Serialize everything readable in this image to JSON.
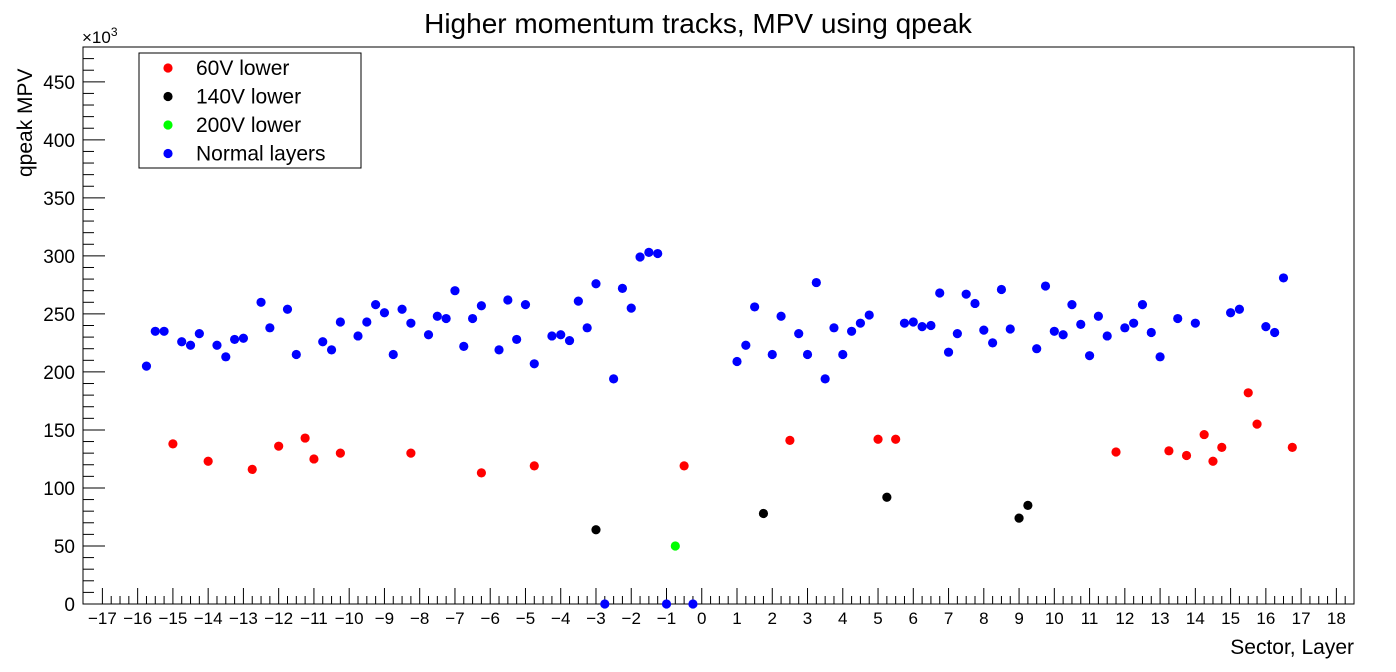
{
  "chart_data": {
    "type": "scatter",
    "title": "Higher momentum tracks, MPV using qpeak",
    "xlabel": "Sector, Layer",
    "ylabel": "qpeak MPV",
    "y_exponent_label": "×10",
    "y_exponent_power": "3",
    "xlim": [
      -17.55,
      18.5
    ],
    "ylim": [
      0,
      480
    ],
    "x_ticks": [
      "−17",
      "−16",
      "−15",
      "−14",
      "−13",
      "−12",
      "−11",
      "−10",
      "−9",
      "−8",
      "−7",
      "−6",
      "−5",
      "−4",
      "−3",
      "−2",
      "−1",
      "0",
      "1",
      "2",
      "3",
      "4",
      "5",
      "6",
      "7",
      "8",
      "9",
      "10",
      "11",
      "12",
      "13",
      "14",
      "15",
      "16",
      "17",
      "18"
    ],
    "y_ticks": [
      "0",
      "50",
      "100",
      "150",
      "200",
      "250",
      "300",
      "350",
      "400",
      "450"
    ],
    "grid": false,
    "legend_position": "top-left",
    "legend": [
      {
        "label": "60V lower",
        "color": "#ff0000"
      },
      {
        "label": "140V lower",
        "color": "#000000"
      },
      {
        "label": "200V lower",
        "color": "#00ff00"
      },
      {
        "label": "Normal layers",
        "color": "#0000ff"
      }
    ],
    "series": [
      {
        "name": "60V lower",
        "color": "#ff0000",
        "points": [
          [
            -15.0,
            138
          ],
          [
            -14.0,
            123
          ],
          [
            -12.75,
            116
          ],
          [
            -12.0,
            136
          ],
          [
            -11.25,
            143
          ],
          [
            -11.0,
            125
          ],
          [
            -10.25,
            130
          ],
          [
            -8.25,
            130
          ],
          [
            -6.25,
            113
          ],
          [
            -4.75,
            119
          ],
          [
            -0.5,
            119
          ],
          [
            2.5,
            141
          ],
          [
            5.0,
            142
          ],
          [
            5.5,
            142
          ],
          [
            11.75,
            131
          ],
          [
            13.25,
            132
          ],
          [
            13.75,
            128
          ],
          [
            14.25,
            146
          ],
          [
            14.5,
            123
          ],
          [
            14.75,
            135
          ],
          [
            15.5,
            182
          ],
          [
            15.75,
            155
          ],
          [
            16.75,
            135
          ]
        ]
      },
      {
        "name": "140V lower",
        "color": "#000000",
        "points": [
          [
            -3.0,
            64
          ],
          [
            1.75,
            78
          ],
          [
            5.25,
            92
          ],
          [
            9.0,
            74
          ],
          [
            9.25,
            85
          ]
        ]
      },
      {
        "name": "200V lower",
        "color": "#00ff00",
        "points": [
          [
            -0.75,
            50
          ]
        ]
      },
      {
        "name": "Normal layers",
        "color": "#0000ff",
        "points": [
          [
            -15.75,
            205
          ],
          [
            -15.5,
            235
          ],
          [
            -15.25,
            235
          ],
          [
            -14.75,
            226
          ],
          [
            -14.5,
            223
          ],
          [
            -14.25,
            233
          ],
          [
            -13.75,
            223
          ],
          [
            -13.5,
            213
          ],
          [
            -13.25,
            228
          ],
          [
            -13.0,
            229
          ],
          [
            -12.5,
            260
          ],
          [
            -12.25,
            238
          ],
          [
            -11.75,
            254
          ],
          [
            -11.5,
            215
          ],
          [
            -10.75,
            226
          ],
          [
            -10.5,
            219
          ],
          [
            -10.25,
            243
          ],
          [
            -9.75,
            231
          ],
          [
            -9.5,
            243
          ],
          [
            -9.25,
            258
          ],
          [
            -9.0,
            251
          ],
          [
            -8.75,
            215
          ],
          [
            -8.5,
            254
          ],
          [
            -8.25,
            242
          ],
          [
            -7.75,
            232
          ],
          [
            -7.5,
            248
          ],
          [
            -7.25,
            246
          ],
          [
            -7.0,
            270
          ],
          [
            -6.75,
            222
          ],
          [
            -6.5,
            246
          ],
          [
            -6.25,
            257
          ],
          [
            -5.75,
            219
          ],
          [
            -5.5,
            262
          ],
          [
            -5.25,
            228
          ],
          [
            -5.0,
            258
          ],
          [
            -4.75,
            207
          ],
          [
            -4.25,
            231
          ],
          [
            -4.0,
            232
          ],
          [
            -3.75,
            227
          ],
          [
            -3.5,
            261
          ],
          [
            -3.25,
            238
          ],
          [
            -3.0,
            276
          ],
          [
            -2.75,
            0
          ],
          [
            -2.5,
            194
          ],
          [
            -2.25,
            272
          ],
          [
            -2.0,
            255
          ],
          [
            -1.75,
            299
          ],
          [
            -1.5,
            303
          ],
          [
            -1.25,
            302
          ],
          [
            -1.0,
            0
          ],
          [
            -0.25,
            0
          ],
          [
            1.0,
            209
          ],
          [
            1.25,
            223
          ],
          [
            1.5,
            256
          ],
          [
            2.0,
            215
          ],
          [
            2.25,
            248
          ],
          [
            2.75,
            233
          ],
          [
            3.0,
            215
          ],
          [
            3.25,
            277
          ],
          [
            3.5,
            194
          ],
          [
            3.75,
            238
          ],
          [
            4.0,
            215
          ],
          [
            4.25,
            235
          ],
          [
            4.5,
            242
          ],
          [
            4.75,
            249
          ],
          [
            5.75,
            242
          ],
          [
            6.0,
            243
          ],
          [
            6.25,
            239
          ],
          [
            6.5,
            240
          ],
          [
            6.75,
            268
          ],
          [
            7.0,
            217
          ],
          [
            7.25,
            233
          ],
          [
            7.5,
            267
          ],
          [
            7.75,
            259
          ],
          [
            8.0,
            236
          ],
          [
            8.25,
            225
          ],
          [
            8.5,
            271
          ],
          [
            8.75,
            237
          ],
          [
            9.5,
            220
          ],
          [
            9.75,
            274
          ],
          [
            10.0,
            235
          ],
          [
            10.25,
            232
          ],
          [
            10.5,
            258
          ],
          [
            10.75,
            241
          ],
          [
            11.0,
            214
          ],
          [
            11.25,
            248
          ],
          [
            11.5,
            231
          ],
          [
            12.0,
            238
          ],
          [
            12.25,
            242
          ],
          [
            12.5,
            258
          ],
          [
            12.75,
            234
          ],
          [
            13.0,
            213
          ],
          [
            13.5,
            246
          ],
          [
            14.0,
            242
          ],
          [
            15.0,
            251
          ],
          [
            15.25,
            254
          ],
          [
            16.0,
            239
          ],
          [
            16.25,
            234
          ],
          [
            16.5,
            281
          ]
        ]
      }
    ]
  }
}
